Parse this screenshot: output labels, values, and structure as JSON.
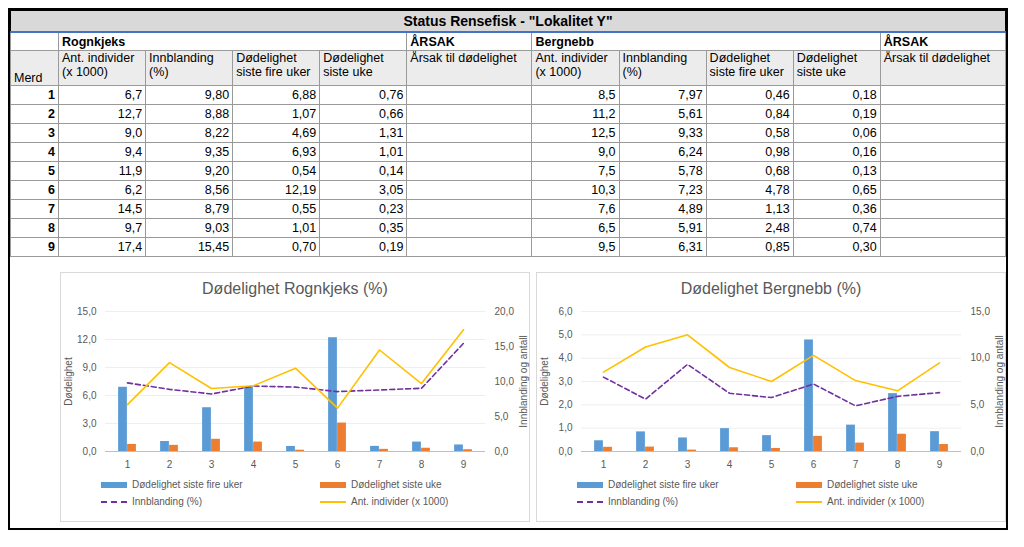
{
  "table": {
    "title": "Status Rensefisk - \"Lokalitet Y\"",
    "row_header": "Merd",
    "groups": [
      {
        "name": "Rognkjeks",
        "cause": "ÅRSAK",
        "columns": [
          "Ant. individer (x 1000)",
          "Innblanding (%)",
          "Dødelighet siste fire uker",
          "Dødelighet siste uke",
          "Årsak til dødelighet"
        ]
      },
      {
        "name": "Bergnebb",
        "cause": "ÅRSAK",
        "columns": [
          "Ant. individer (x 1000)",
          "Innblanding (%)",
          "Dødelighet siste fire uker",
          "Dødelighet siste uke",
          "Årsak til dødelighet"
        ]
      }
    ],
    "rows": [
      {
        "merd": "1",
        "values": [
          [
            "6,7",
            "9,80",
            "6,88",
            "0,76"
          ],
          [
            "8,5",
            "7,97",
            "0,46",
            "0,18"
          ]
        ]
      },
      {
        "merd": "2",
        "values": [
          [
            "12,7",
            "8,88",
            "1,07",
            "0,66"
          ],
          [
            "11,2",
            "5,61",
            "0,84",
            "0,19"
          ]
        ]
      },
      {
        "merd": "3",
        "values": [
          [
            "9,0",
            "8,22",
            "4,69",
            "1,31"
          ],
          [
            "12,5",
            "9,33",
            "0,58",
            "0,06"
          ]
        ]
      },
      {
        "merd": "4",
        "values": [
          [
            "9,4",
            "9,35",
            "6,93",
            "1,01"
          ],
          [
            "9,0",
            "6,24",
            "0,98",
            "0,16"
          ]
        ]
      },
      {
        "merd": "5",
        "values": [
          [
            "11,9",
            "9,20",
            "0,54",
            "0,14"
          ],
          [
            "7,5",
            "5,78",
            "0,68",
            "0,13"
          ]
        ]
      },
      {
        "merd": "6",
        "values": [
          [
            "6,2",
            "8,56",
            "12,19",
            "3,05"
          ],
          [
            "10,3",
            "7,23",
            "4,78",
            "0,65"
          ]
        ]
      },
      {
        "merd": "7",
        "values": [
          [
            "14,5",
            "8,79",
            "0,55",
            "0,23"
          ],
          [
            "7,6",
            "4,89",
            "1,13",
            "0,36"
          ]
        ]
      },
      {
        "merd": "8",
        "values": [
          [
            "9,7",
            "9,03",
            "1,01",
            "0,35"
          ],
          [
            "6,5",
            "5,91",
            "2,48",
            "0,74"
          ]
        ]
      },
      {
        "merd": "9",
        "values": [
          [
            "17,4",
            "15,45",
            "0,70",
            "0,19"
          ],
          [
            "9,5",
            "6,31",
            "0,85",
            "0,30"
          ]
        ]
      }
    ]
  },
  "chart_data": [
    {
      "type": "bar",
      "title": "Dødelighet Rognkjeks (%)",
      "ylabel": "Dødelighet",
      "y2label": "Innblanding og antall",
      "categories": [
        1,
        2,
        3,
        4,
        5,
        6,
        7,
        8,
        9
      ],
      "ylim": [
        0,
        15
      ],
      "yticks": [
        {
          "value": 0,
          "label": "0,0"
        },
        {
          "value": 3,
          "label": "3,0"
        },
        {
          "value": 6,
          "label": "6,0"
        },
        {
          "value": 9,
          "label": "9,0"
        },
        {
          "value": 12,
          "label": "12,0"
        },
        {
          "value": 15,
          "label": "15,0"
        }
      ],
      "y2lim": [
        0,
        20
      ],
      "y2ticks": [
        {
          "value": 0,
          "label": "0,0"
        },
        {
          "value": 5,
          "label": "5,0"
        },
        {
          "value": 10,
          "label": "10,0"
        },
        {
          "value": 15,
          "label": "15,0"
        },
        {
          "value": 20,
          "label": "20,0"
        }
      ],
      "grid": true,
      "legend": "bottom",
      "series": [
        {
          "name": "Dødelighet siste fire uker",
          "type": "bar",
          "color": "#5b9bd5",
          "values": [
            6.88,
            1.07,
            4.69,
            6.93,
            0.54,
            12.19,
            0.55,
            1.01,
            0.7
          ]
        },
        {
          "name": "Dødelighet siste uke",
          "type": "bar",
          "color": "#ed7d31",
          "values": [
            0.76,
            0.66,
            1.31,
            1.01,
            0.14,
            3.05,
            0.23,
            0.35,
            0.19
          ]
        },
        {
          "name": "Innblanding (%)",
          "type": "line",
          "axis": "y2",
          "line_style": "dashed",
          "color": "#7030a0",
          "values": [
            9.8,
            8.88,
            8.22,
            9.35,
            9.2,
            8.56,
            8.79,
            9.03,
            15.45
          ]
        },
        {
          "name": "Ant. individer (x 1000)",
          "type": "line",
          "axis": "y2",
          "line_style": "solid",
          "color": "#ffc000",
          "values": [
            6.7,
            12.7,
            9.0,
            9.4,
            11.9,
            6.2,
            14.5,
            9.7,
            17.4
          ]
        }
      ]
    },
    {
      "type": "bar",
      "title": "Dødelighet Bergnebb (%)",
      "ylabel": "Dødelighet",
      "y2label": "Innblanding og antall",
      "categories": [
        1,
        2,
        3,
        4,
        5,
        6,
        7,
        8,
        9
      ],
      "ylim": [
        0,
        6
      ],
      "yticks": [
        {
          "value": 0,
          "label": "0,0"
        },
        {
          "value": 1,
          "label": "1,0"
        },
        {
          "value": 2,
          "label": "2,0"
        },
        {
          "value": 3,
          "label": "3,0"
        },
        {
          "value": 4,
          "label": "4,0"
        },
        {
          "value": 5,
          "label": "5,0"
        },
        {
          "value": 6,
          "label": "6,0"
        }
      ],
      "y2lim": [
        0,
        15
      ],
      "y2ticks": [
        {
          "value": 0,
          "label": "0,0"
        },
        {
          "value": 5,
          "label": "5,0"
        },
        {
          "value": 10,
          "label": "10,0"
        },
        {
          "value": 15,
          "label": "15,0"
        }
      ],
      "grid": true,
      "legend": "bottom",
      "series": [
        {
          "name": "Dødelighet siste fire uker",
          "type": "bar",
          "color": "#5b9bd5",
          "values": [
            0.46,
            0.84,
            0.58,
            0.98,
            0.68,
            4.78,
            1.13,
            2.48,
            0.85
          ]
        },
        {
          "name": "Dødelighet siste uke",
          "type": "bar",
          "color": "#ed7d31",
          "values": [
            0.18,
            0.19,
            0.06,
            0.16,
            0.13,
            0.65,
            0.36,
            0.74,
            0.3
          ]
        },
        {
          "name": "Innblanding (%)",
          "type": "line",
          "axis": "y2",
          "line_style": "dashed",
          "color": "#7030a0",
          "values": [
            7.97,
            5.61,
            9.33,
            6.24,
            5.78,
            7.23,
            4.89,
            5.91,
            6.31
          ]
        },
        {
          "name": "Ant. individer (x 1000)",
          "type": "line",
          "axis": "y2",
          "line_style": "solid",
          "color": "#ffc000",
          "values": [
            8.5,
            11.2,
            12.5,
            9.0,
            7.5,
            10.3,
            7.6,
            6.5,
            9.5
          ]
        }
      ]
    }
  ]
}
